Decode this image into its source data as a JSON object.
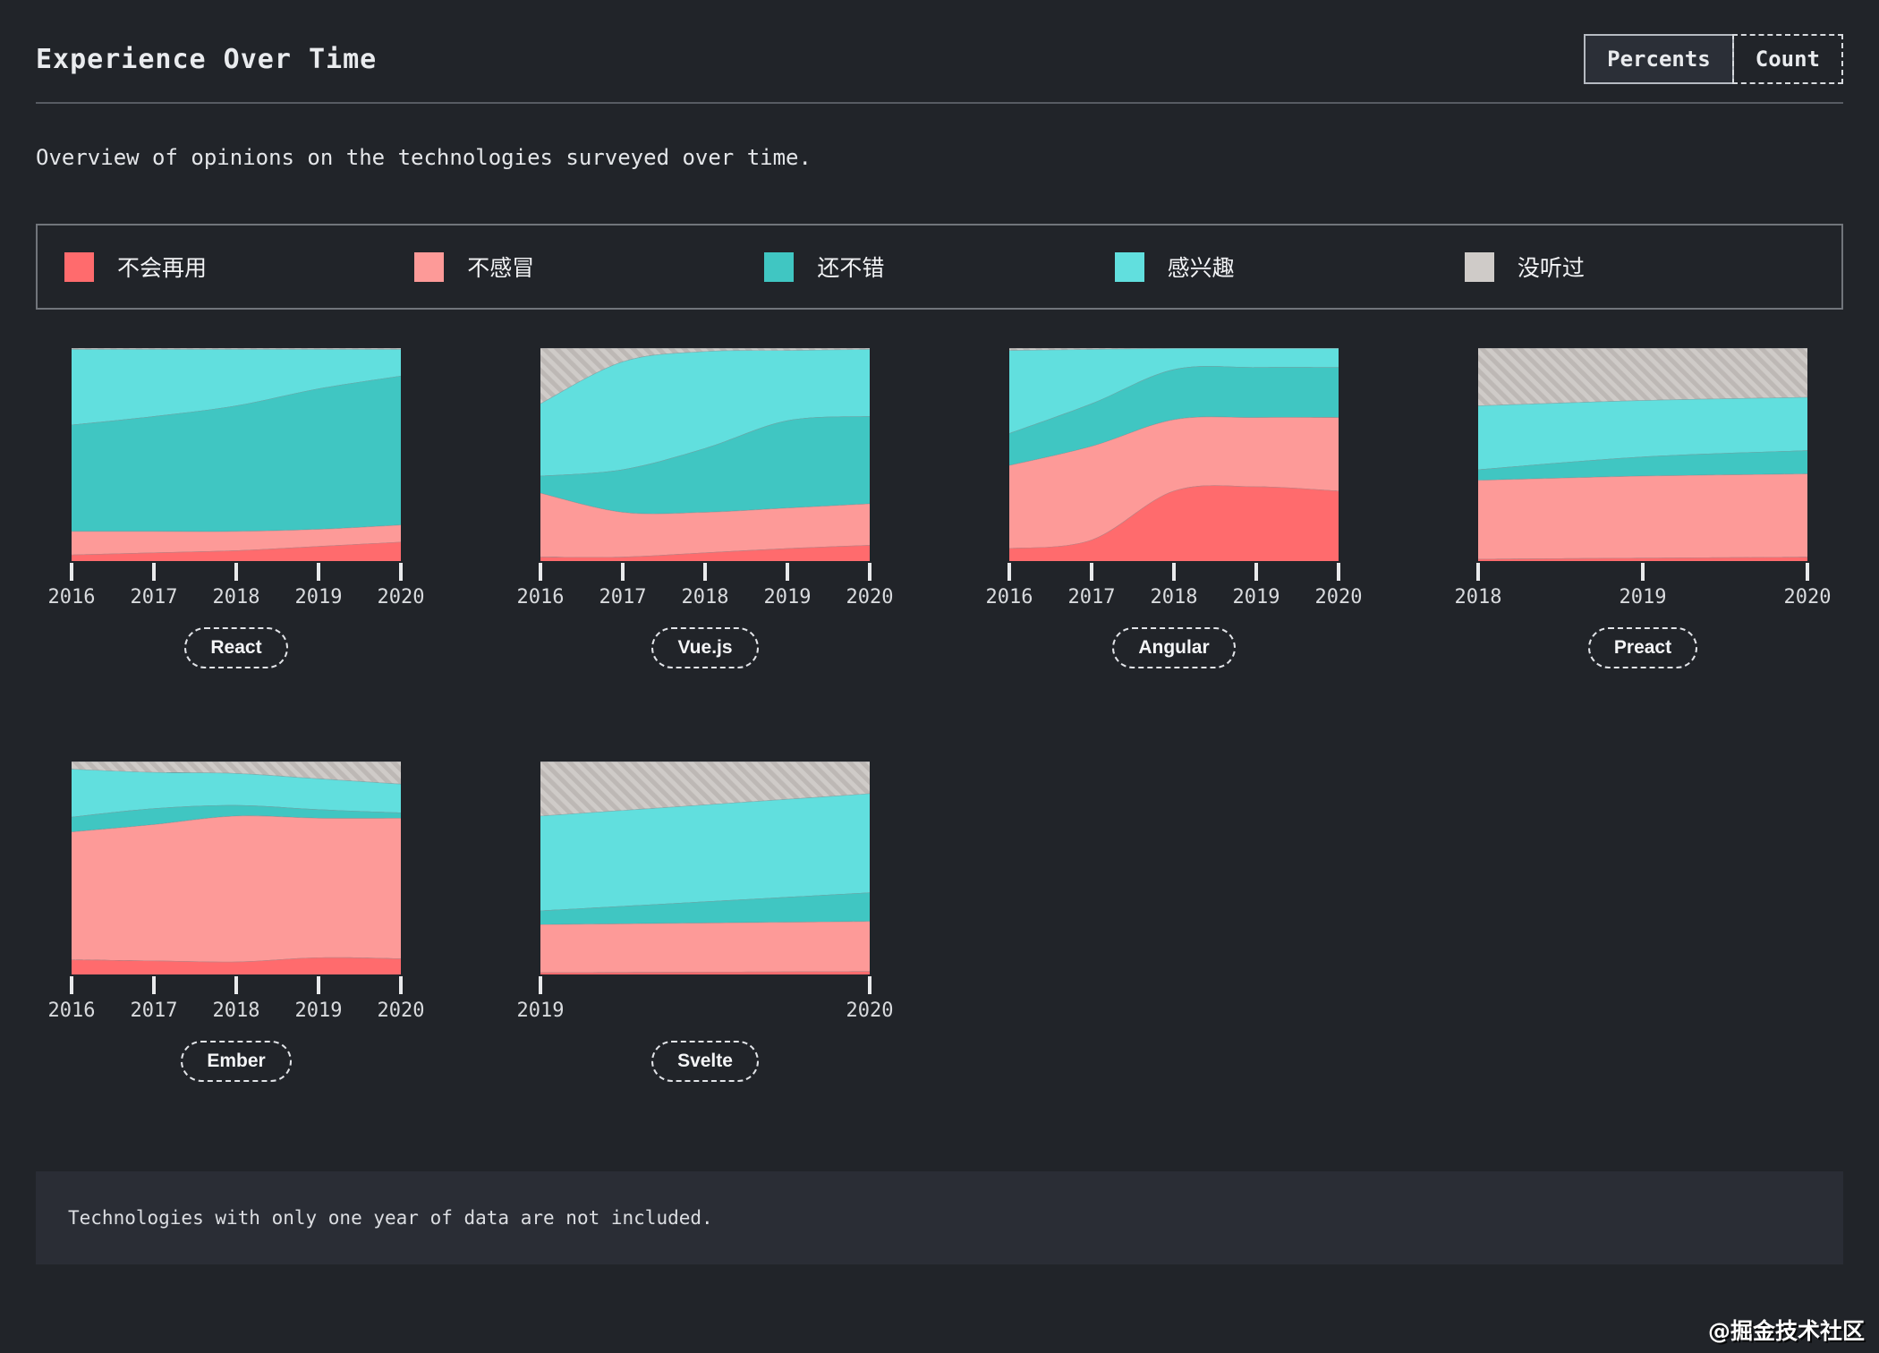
{
  "page": {
    "title": "Experience Over Time",
    "subtitle": "Overview of opinions on the technologies surveyed over time.",
    "note": "Technologies with only one year of data are not included.",
    "watermark": "@掘金技术社区"
  },
  "toolbar": {
    "buttons": [
      {
        "label": "Percents",
        "active": true
      },
      {
        "label": "Count",
        "active": false
      }
    ]
  },
  "legend": {
    "items": [
      {
        "label": "不会再用",
        "color": "#ff6b6d",
        "hatched": false
      },
      {
        "label": "不感冒",
        "color": "#fd9a98",
        "hatched": false
      },
      {
        "label": "还不错",
        "color": "#40c6c2",
        "hatched": false
      },
      {
        "label": "感兴趣",
        "color": "#61dfde",
        "hatched": false
      },
      {
        "label": "没听过",
        "color": "#cfcbc8",
        "hatched": true
      }
    ]
  },
  "chart_data": {
    "type": "area",
    "stacked": true,
    "unit": "percent",
    "ylim": [
      0,
      100
    ],
    "series_order_bottom_to_top": [
      "不会再用",
      "不感冒",
      "还不错",
      "感兴趣",
      "没听过"
    ],
    "colors": {
      "不会再用": "#ff6b6d",
      "不感冒": "#fd9a98",
      "还不错": "#40c6c2",
      "感兴趣": "#61dfde",
      "没听过": "#cfcbc8"
    },
    "hatch": {
      "base": "#cfcbc8",
      "stripe": "#bdb8b5",
      "angle_deg": 45
    },
    "charts": [
      {
        "name": "React",
        "years": [
          2016,
          2017,
          2018,
          2019,
          2020
        ],
        "series": [
          {
            "name": "不会再用",
            "values": [
              3,
              4,
              5,
              7,
              9
            ]
          },
          {
            "name": "不感冒",
            "values": [
              11,
              10,
              9,
              8,
              8
            ]
          },
          {
            "name": "还不错",
            "values": [
              50,
              54,
              59,
              66,
              70
            ]
          },
          {
            "name": "感兴趣",
            "values": [
              35.5,
              31.5,
              26.5,
              18.5,
              12.5
            ]
          },
          {
            "name": "没听过",
            "values": [
              0.5,
              0.5,
              0.5,
              0.5,
              0.5
            ]
          }
        ]
      },
      {
        "name": "Vue.js",
        "years": [
          2016,
          2017,
          2018,
          2019,
          2020
        ],
        "series": [
          {
            "name": "不会再用",
            "values": [
              2,
              2,
              4,
              6,
              7.5
            ]
          },
          {
            "name": "不感冒",
            "values": [
              30,
              21,
              19,
              19,
              19.5
            ]
          },
          {
            "name": "还不错",
            "values": [
              8,
              20,
              30,
              41,
              41
            ]
          },
          {
            "name": "感兴趣",
            "values": [
              34,
              50.7,
              45.5,
              33,
              31.5
            ]
          },
          {
            "name": "没听过",
            "values": [
              26,
              6.3,
              1.5,
              1,
              0.5
            ]
          }
        ]
      },
      {
        "name": "Angular",
        "years": [
          2016,
          2017,
          2018,
          2019,
          2020
        ],
        "series": [
          {
            "name": "不会再用",
            "values": [
              6,
              10,
              33,
              35,
              33
            ]
          },
          {
            "name": "不感冒",
            "values": [
              39,
              44,
              33.5,
              32.5,
              34.5
            ]
          },
          {
            "name": "还不错",
            "values": [
              15,
              20,
              23.5,
              23.5,
              23.5
            ]
          },
          {
            "name": "感兴趣",
            "values": [
              39,
              25.5,
              10,
              9,
              9
            ]
          },
          {
            "name": "没听过",
            "values": [
              1,
              0.5,
              0,
              0,
              0
            ]
          }
        ]
      },
      {
        "name": "Preact",
        "years": [
          2018,
          2019,
          2020
        ],
        "series": [
          {
            "name": "不会再用",
            "values": [
              1,
              1.5,
              2
            ]
          },
          {
            "name": "不感冒",
            "values": [
              37,
              38.5,
              39
            ]
          },
          {
            "name": "还不错",
            "values": [
              5,
              9,
              11
            ]
          },
          {
            "name": "感兴趣",
            "values": [
              30,
              26.5,
              25
            ]
          },
          {
            "name": "没听过",
            "values": [
              27,
              24.5,
              23
            ]
          }
        ]
      },
      {
        "name": "Ember",
        "years": [
          2016,
          2017,
          2018,
          2019,
          2020
        ],
        "series": [
          {
            "name": "不会再用",
            "values": [
              7,
              6.5,
              6,
              8,
              7.5
            ]
          },
          {
            "name": "不感冒",
            "values": [
              60,
              64,
              68.5,
              65.5,
              66
            ]
          },
          {
            "name": "还不错",
            "values": [
              7,
              7.5,
              5,
              4,
              2.5
            ]
          },
          {
            "name": "感兴趣",
            "values": [
              22.5,
              17,
              15,
              14.5,
              13.5
            ]
          },
          {
            "name": "没听过",
            "values": [
              3.5,
              5,
              5.5,
              8,
              10.5
            ]
          }
        ]
      },
      {
        "name": "Svelte",
        "years": [
          2019,
          2020
        ],
        "series": [
          {
            "name": "不会再用",
            "values": [
              1,
              1.5
            ]
          },
          {
            "name": "不感冒",
            "values": [
              22.5,
              23.5
            ]
          },
          {
            "name": "还不错",
            "values": [
              6.5,
              13.5
            ]
          },
          {
            "name": "感兴趣",
            "values": [
              44.5,
              46.5
            ]
          },
          {
            "name": "没听过",
            "values": [
              25.5,
              15
            ]
          }
        ]
      }
    ]
  }
}
